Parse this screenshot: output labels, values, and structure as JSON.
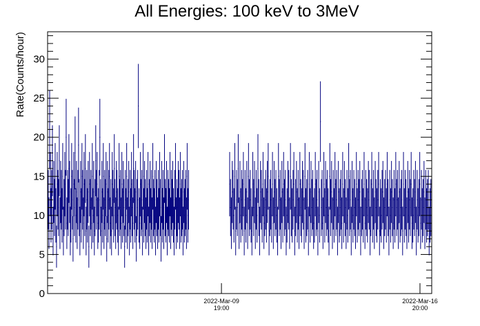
{
  "chart_data": {
    "type": "scatter",
    "title": "All Energies:  100 keV to 3MeV",
    "xlabel": "",
    "ylabel": "Rate(Counts/hour)",
    "ylim": [
      0,
      33.5
    ],
    "yticks": [
      "0",
      "5",
      "10",
      "15",
      "20",
      "25",
      "30"
    ],
    "xlim": [
      "2022-03-03 15:00",
      "2022-03-17 06:00"
    ],
    "xticks": [
      {
        "x": "2022-03-09 19:00",
        "date": "2022-Mar-09",
        "time": "19:00"
      },
      {
        "x": "2022-03-16 20:00",
        "date": "2022-Mar-16",
        "time": "20:00"
      }
    ],
    "grid": false,
    "legend": "none",
    "error_bars": true,
    "marker_color": "#00007f",
    "frame_color": "#000000",
    "series": [
      {
        "segments": [
          {
            "x_start": "2022-03-03 15:00",
            "x_end": "2022-03-08 15:00",
            "values": [
              15,
              12,
              9,
              21,
              14,
              10,
              12,
              17,
              8,
              13,
              11,
              15,
              10,
              6,
              14,
              12,
              11,
              17,
              9,
              13,
              12,
              10,
              15,
              8,
              11,
              14,
              12,
              20,
              9,
              12,
              11,
              16,
              13,
              8,
              10,
              15,
              12,
              7,
              14,
              11,
              18,
              10,
              13,
              9,
              12,
              19,
              11,
              8,
              13,
              10,
              15,
              12,
              9,
              14,
              11,
              16,
              8,
              12,
              10,
              13,
              6,
              14,
              11,
              12,
              9,
              15,
              10,
              13,
              8,
              11,
              17,
              12,
              14,
              9,
              10,
              12,
              20,
              11,
              8,
              13,
              10,
              15,
              9,
              12,
              11,
              14,
              7,
              13,
              10,
              12,
              15,
              9,
              11,
              8,
              14,
              12,
              10,
              16,
              11,
              9,
              13,
              12,
              10,
              8,
              15,
              11,
              12,
              9,
              14,
              10,
              13,
              11,
              6,
              12,
              10,
              15,
              9,
              11,
              13,
              8,
              12,
              10,
              14,
              11,
              9,
              16,
              12,
              10,
              13,
              7,
              11,
              12,
              24,
              10,
              9,
              14,
              11,
              12,
              8,
              15,
              10,
              13,
              11,
              9,
              12,
              10,
              14,
              8,
              11,
              13,
              10,
              12,
              9,
              15,
              11,
              10,
              12,
              8,
              13,
              11,
              9,
              12,
              10,
              14,
              11,
              7,
              13,
              10,
              12,
              9,
              16,
              11,
              10,
              13,
              8,
              12,
              11,
              10,
              14,
              9,
              12,
              11,
              13,
              10,
              8,
              12,
              15,
              9,
              11,
              10,
              13,
              12,
              9,
              14,
              10,
              11,
              12,
              8,
              13,
              10,
              11,
              12,
              9,
              15,
              10,
              12
            ]
          },
          {
            "x_start": "2022-03-10 02:00",
            "x_end": "2022-03-17 06:00",
            "values": [
              14,
              11,
              9,
              13,
              12,
              10,
              15,
              8,
              12,
              11,
              16,
              9,
              13,
              10,
              12,
              11,
              14,
              8,
              12,
              10,
              13,
              9,
              15,
              11,
              12,
              10,
              8,
              14,
              11,
              13,
              9,
              12,
              10,
              16,
              11,
              8,
              13,
              12,
              10,
              14,
              9,
              11,
              12,
              10,
              13,
              15,
              8,
              11,
              12,
              10,
              14,
              9,
              13,
              11,
              12,
              10,
              8,
              15,
              11,
              12,
              9,
              13,
              10,
              14,
              11,
              12,
              8,
              10,
              13,
              12,
              9,
              15,
              11,
              10,
              12,
              14,
              8,
              11,
              13,
              10,
              12,
              9,
              14,
              11,
              10,
              13,
              12,
              9,
              15,
              10,
              11,
              12,
              8,
              14,
              10,
              13,
              11,
              12,
              9,
              10,
              14,
              11,
              12,
              8,
              13,
              10,
              22,
              11,
              12,
              9,
              14,
              10,
              13,
              11,
              12,
              10,
              8,
              15,
              11,
              13,
              9,
              12,
              10,
              14,
              11,
              12,
              8,
              13,
              10,
              11,
              12,
              9,
              14,
              10,
              13,
              11,
              9,
              12,
              10,
              15,
              11,
              12,
              8,
              13,
              10,
              12,
              11,
              9,
              14,
              10,
              12,
              11,
              13,
              8,
              11,
              12,
              10,
              14,
              9,
              12,
              11,
              10,
              13,
              12,
              8,
              11,
              14,
              10,
              12,
              9,
              13,
              11,
              10,
              12,
              14,
              8,
              11,
              10,
              12,
              13,
              9,
              11,
              12,
              10,
              14,
              11,
              8,
              12,
              10,
              13,
              11,
              9,
              12,
              10,
              14,
              11,
              12,
              9,
              13,
              10,
              11,
              12,
              8,
              14,
              10,
              12,
              11,
              9,
              13,
              10,
              12,
              11,
              14,
              9,
              10,
              12,
              11,
              13,
              8,
              12,
              10,
              11,
              14,
              9,
              12,
              10,
              11,
              13,
              9,
              12,
              10,
              11,
              12,
              8,
              10,
              11,
              12
            ]
          }
        ]
      }
    ]
  }
}
